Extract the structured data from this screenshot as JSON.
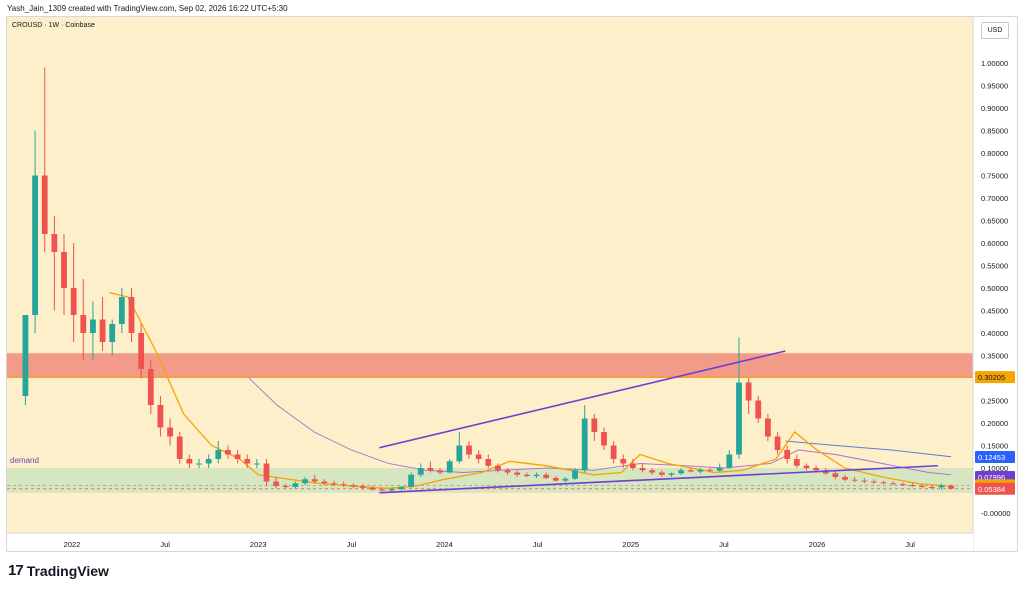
{
  "header": {
    "attribution": "Yash_Jain_1309 created with TradingView.com, Sep 02, 2026 16:22 UTC+5:30"
  },
  "symbol_label": "CROUSD · 1W · Coinbase",
  "currency_button": "USD",
  "zone_label": "demand",
  "footer": {
    "logo": "17",
    "brand": "TradingView"
  },
  "colors": {
    "background": "#fcefc9",
    "up": "#26a69a",
    "down": "#ef5350",
    "trendline": "#6f3fd0",
    "ema_fast": "#f5a400",
    "ema_slow": "#b070c8",
    "resistance_zone": "#f08c7c",
    "demand_zone": "#c9e3bc"
  },
  "chart_data": {
    "type": "candlestick",
    "title": "CROUSD · 1W · Coinbase",
    "y_axis": {
      "ticks": [
        "1.00000",
        "0.95000",
        "0.90000",
        "0.85000",
        "0.80000",
        "0.75000",
        "0.70000",
        "0.65000",
        "0.60000",
        "0.55000",
        "0.50000",
        "0.45000",
        "0.40000",
        "0.35000",
        "0.30000",
        "0.25000",
        "0.20000",
        "0.15000",
        "0.10000",
        "0.05000",
        "-0.00000"
      ],
      "ylim": [
        -0.03,
        1.04
      ]
    },
    "x_axis": {
      "ticks": [
        {
          "label": "2022",
          "t": 2022.0
        },
        {
          "label": "Jul",
          "t": 2022.5
        },
        {
          "label": "2023",
          "t": 2023.0
        },
        {
          "label": "Jul",
          "t": 2023.5
        },
        {
          "label": "2024",
          "t": 2024.0
        },
        {
          "label": "Jul",
          "t": 2024.5
        },
        {
          "label": "2025",
          "t": 2025.0
        },
        {
          "label": "Jul",
          "t": 2025.5
        },
        {
          "label": "2026",
          "t": 2026.0
        },
        {
          "label": "Jul",
          "t": 2026.5
        }
      ]
    },
    "price_labels": [
      {
        "value": 0.30205,
        "text": "0.30205",
        "bg": "#f5a400",
        "fg": "#131722"
      },
      {
        "value": 0.12453,
        "text": "0.12453",
        "bg": "#2962ff",
        "fg": "#ffffff"
      },
      {
        "value": 0.07996,
        "text": "0.07996",
        "bg": "#6f3fd0",
        "fg": "#ffffff"
      },
      {
        "value": 0.06139,
        "text": "0.06139",
        "bg": "#f5a400",
        "fg": "#131722"
      },
      {
        "value": 0.05384,
        "text": "0.05384",
        "bg": "#ef5350",
        "fg": "#ffffff"
      }
    ],
    "zones": [
      {
        "name": "resistance",
        "from": 0.3,
        "to": 0.355
      },
      {
        "name": "demand",
        "from": 0.045,
        "to": 0.1
      }
    ],
    "trendlines": [
      {
        "from": [
          2023.65,
          0.045
        ],
        "to": [
          2026.65,
          0.105
        ]
      },
      {
        "from": [
          2023.65,
          0.145
        ],
        "to": [
          2025.83,
          0.36
        ]
      }
    ],
    "candles": [
      [
        0.26,
        0.44,
        0.24,
        0.44
      ],
      [
        0.44,
        0.85,
        0.4,
        0.75
      ],
      [
        0.75,
        0.99,
        0.58,
        0.62
      ],
      [
        0.62,
        0.66,
        0.45,
        0.58
      ],
      [
        0.58,
        0.62,
        0.44,
        0.5
      ],
      [
        0.5,
        0.6,
        0.38,
        0.44
      ],
      [
        0.44,
        0.52,
        0.34,
        0.4
      ],
      [
        0.4,
        0.47,
        0.34,
        0.43
      ],
      [
        0.43,
        0.48,
        0.36,
        0.38
      ],
      [
        0.38,
        0.43,
        0.35,
        0.42
      ],
      [
        0.42,
        0.5,
        0.4,
        0.48
      ],
      [
        0.48,
        0.5,
        0.38,
        0.4
      ],
      [
        0.4,
        0.42,
        0.3,
        0.32
      ],
      [
        0.32,
        0.34,
        0.22,
        0.24
      ],
      [
        0.24,
        0.26,
        0.17,
        0.19
      ],
      [
        0.19,
        0.21,
        0.15,
        0.17
      ],
      [
        0.17,
        0.18,
        0.11,
        0.12
      ],
      [
        0.12,
        0.13,
        0.1,
        0.11
      ],
      [
        0.11,
        0.12,
        0.1,
        0.11
      ],
      [
        0.11,
        0.13,
        0.1,
        0.12
      ],
      [
        0.12,
        0.16,
        0.11,
        0.14
      ],
      [
        0.14,
        0.15,
        0.12,
        0.13
      ],
      [
        0.13,
        0.14,
        0.11,
        0.12
      ],
      [
        0.12,
        0.13,
        0.1,
        0.11
      ],
      [
        0.11,
        0.12,
        0.1,
        0.11
      ],
      [
        0.11,
        0.12,
        0.06,
        0.07
      ],
      [
        0.07,
        0.08,
        0.055,
        0.06
      ],
      [
        0.06,
        0.065,
        0.055,
        0.058
      ],
      [
        0.058,
        0.07,
        0.055,
        0.066
      ],
      [
        0.066,
        0.08,
        0.062,
        0.075
      ],
      [
        0.075,
        0.085,
        0.066,
        0.07
      ],
      [
        0.07,
        0.075,
        0.062,
        0.066
      ],
      [
        0.066,
        0.072,
        0.06,
        0.064
      ],
      [
        0.064,
        0.07,
        0.058,
        0.062
      ],
      [
        0.062,
        0.066,
        0.055,
        0.06
      ],
      [
        0.06,
        0.064,
        0.052,
        0.056
      ],
      [
        0.056,
        0.06,
        0.05,
        0.052
      ],
      [
        0.052,
        0.056,
        0.048,
        0.05
      ],
      [
        0.05,
        0.056,
        0.048,
        0.053
      ],
      [
        0.053,
        0.06,
        0.05,
        0.058
      ],
      [
        0.058,
        0.09,
        0.056,
        0.085
      ],
      [
        0.085,
        0.11,
        0.08,
        0.1
      ],
      [
        0.1,
        0.115,
        0.09,
        0.095
      ],
      [
        0.095,
        0.1,
        0.085,
        0.09
      ],
      [
        0.09,
        0.12,
        0.088,
        0.115
      ],
      [
        0.115,
        0.18,
        0.11,
        0.15
      ],
      [
        0.15,
        0.16,
        0.12,
        0.13
      ],
      [
        0.13,
        0.14,
        0.11,
        0.12
      ],
      [
        0.12,
        0.13,
        0.1,
        0.105
      ],
      [
        0.105,
        0.11,
        0.09,
        0.095
      ],
      [
        0.095,
        0.1,
        0.085,
        0.09
      ],
      [
        0.09,
        0.095,
        0.08,
        0.085
      ],
      [
        0.085,
        0.09,
        0.08,
        0.082
      ],
      [
        0.082,
        0.09,
        0.078,
        0.085
      ],
      [
        0.085,
        0.09,
        0.075,
        0.078
      ],
      [
        0.078,
        0.082,
        0.07,
        0.072
      ],
      [
        0.072,
        0.08,
        0.068,
        0.076
      ],
      [
        0.076,
        0.1,
        0.074,
        0.095
      ],
      [
        0.095,
        0.24,
        0.09,
        0.21
      ],
      [
        0.21,
        0.22,
        0.16,
        0.18
      ],
      [
        0.18,
        0.19,
        0.14,
        0.15
      ],
      [
        0.15,
        0.16,
        0.11,
        0.12
      ],
      [
        0.12,
        0.13,
        0.1,
        0.11
      ],
      [
        0.11,
        0.12,
        0.095,
        0.1
      ],
      [
        0.1,
        0.11,
        0.09,
        0.095
      ],
      [
        0.095,
        0.1,
        0.085,
        0.09
      ],
      [
        0.09,
        0.095,
        0.08,
        0.085
      ],
      [
        0.085,
        0.09,
        0.08,
        0.088
      ],
      [
        0.088,
        0.1,
        0.085,
        0.095
      ],
      [
        0.095,
        0.1,
        0.09,
        0.092
      ],
      [
        0.092,
        0.1,
        0.088,
        0.096
      ],
      [
        0.096,
        0.1,
        0.09,
        0.094
      ],
      [
        0.094,
        0.11,
        0.092,
        0.1
      ],
      [
        0.1,
        0.14,
        0.098,
        0.13
      ],
      [
        0.13,
        0.39,
        0.12,
        0.29
      ],
      [
        0.29,
        0.3,
        0.22,
        0.25
      ],
      [
        0.25,
        0.26,
        0.2,
        0.21
      ],
      [
        0.21,
        0.22,
        0.16,
        0.17
      ],
      [
        0.17,
        0.18,
        0.13,
        0.14
      ],
      [
        0.14,
        0.15,
        0.11,
        0.12
      ],
      [
        0.12,
        0.13,
        0.1,
        0.105
      ],
      [
        0.105,
        0.11,
        0.095,
        0.1
      ],
      [
        0.1,
        0.105,
        0.09,
        0.095
      ],
      [
        0.095,
        0.1,
        0.085,
        0.088
      ],
      [
        0.088,
        0.092,
        0.075,
        0.08
      ],
      [
        0.08,
        0.085,
        0.07,
        0.074
      ],
      [
        0.074,
        0.08,
        0.068,
        0.072
      ],
      [
        0.072,
        0.078,
        0.066,
        0.07
      ],
      [
        0.07,
        0.075,
        0.065,
        0.068
      ],
      [
        0.068,
        0.072,
        0.064,
        0.066
      ],
      [
        0.066,
        0.07,
        0.062,
        0.064
      ],
      [
        0.064,
        0.068,
        0.06,
        0.062
      ],
      [
        0.062,
        0.066,
        0.058,
        0.06
      ],
      [
        0.06,
        0.064,
        0.056,
        0.058
      ],
      [
        0.058,
        0.062,
        0.055,
        0.057
      ],
      [
        0.057,
        0.065,
        0.052,
        0.061
      ],
      [
        0.061,
        0.063,
        0.052,
        0.054
      ]
    ],
    "candle_range": {
      "t0": 2021.75,
      "t1": 2026.72
    },
    "ema_fast": [
      [
        2022.2,
        0.49
      ],
      [
        2022.3,
        0.48
      ],
      [
        2022.45,
        0.36
      ],
      [
        2022.6,
        0.22
      ],
      [
        2022.75,
        0.15
      ],
      [
        2022.9,
        0.12
      ],
      [
        2023.0,
        0.085
      ],
      [
        2023.3,
        0.067
      ],
      [
        2023.55,
        0.058
      ],
      [
        2023.7,
        0.055
      ],
      [
        2023.85,
        0.06
      ],
      [
        2024.0,
        0.075
      ],
      [
        2024.2,
        0.09
      ],
      [
        2024.35,
        0.115
      ],
      [
        2024.55,
        0.105
      ],
      [
        2024.8,
        0.085
      ],
      [
        2024.95,
        0.09
      ],
      [
        2025.05,
        0.13
      ],
      [
        2025.2,
        0.11
      ],
      [
        2025.45,
        0.09
      ],
      [
        2025.6,
        0.095
      ],
      [
        2025.78,
        0.12
      ],
      [
        2025.88,
        0.18
      ],
      [
        2026.0,
        0.14
      ],
      [
        2026.15,
        0.1
      ],
      [
        2026.35,
        0.08
      ],
      [
        2026.55,
        0.065
      ],
      [
        2026.7,
        0.06
      ]
    ],
    "ema_slow": [
      [
        2022.95,
        0.3
      ],
      [
        2023.1,
        0.24
      ],
      [
        2023.3,
        0.18
      ],
      [
        2023.5,
        0.14
      ],
      [
        2023.7,
        0.11
      ],
      [
        2023.9,
        0.095
      ],
      [
        2024.1,
        0.09
      ],
      [
        2024.3,
        0.095
      ],
      [
        2024.55,
        0.1
      ],
      [
        2024.8,
        0.095
      ],
      [
        2025.05,
        0.11
      ],
      [
        2025.3,
        0.105
      ],
      [
        2025.5,
        0.1
      ],
      [
        2025.75,
        0.11
      ],
      [
        2025.9,
        0.14
      ],
      [
        2026.1,
        0.13
      ],
      [
        2026.35,
        0.11
      ],
      [
        2026.6,
        0.09
      ],
      [
        2026.72,
        0.085
      ]
    ],
    "blue_line": [
      [
        2025.83,
        0.16
      ],
      [
        2026.1,
        0.15
      ],
      [
        2026.4,
        0.14
      ],
      [
        2026.72,
        0.125
      ]
    ]
  }
}
